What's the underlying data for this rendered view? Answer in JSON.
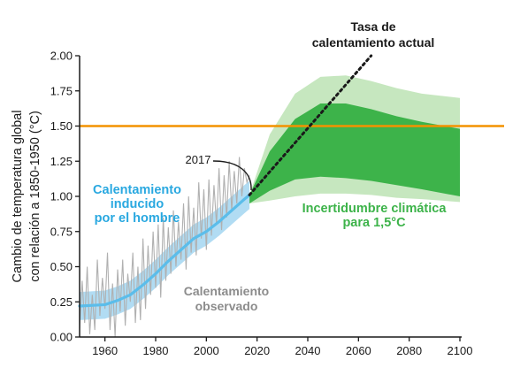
{
  "chart_data": {
    "type": "line",
    "title": "",
    "ylabel_line1": "Cambio de temperatura global",
    "ylabel_line2": "con relación a 1850-1950 (°C)",
    "xlabel": "",
    "xlim": [
      1950,
      2100
    ],
    "ylim": [
      0,
      2
    ],
    "x_ticks": [
      "1960",
      "1980",
      "2000",
      "2020",
      "2040",
      "2060",
      "2080",
      "2100"
    ],
    "y_ticks": [
      "0.00",
      "0.25",
      "0.50",
      "0.75",
      "1.00",
      "1.25",
      "1.50",
      "1.75",
      "2.00"
    ],
    "grid": false,
    "reference_line": {
      "value": 1.5,
      "color": "#f39200"
    },
    "annotations": {
      "rate_line1": "Tasa de",
      "rate_line2": "calentamiento actual",
      "year_2017": "2017",
      "human_line1": "Calentamiento",
      "human_line2": "inducido",
      "human_line3": "por el hombre",
      "observed_line1": "Calentamiento",
      "observed_line2": "observado",
      "uncert_line1": "Incertidumbre climática",
      "uncert_line2": "para 1,5°C"
    },
    "colors": {
      "human": "#5bbdea",
      "human_band": "#a8d8f2",
      "observed": "#b0b0b0",
      "inner_band": "#3db34a",
      "outer_band": "#c6e7bf",
      "rate_line": "#1a1a1a",
      "axis": "#1a1a1a"
    },
    "series": [
      {
        "name": "Calentamiento inducido por el hombre",
        "x": [
          1950,
          1960,
          1965,
          1970,
          1975,
          1980,
          1985,
          1990,
          1995,
          2000,
          2005,
          2010,
          2015,
          2017
        ],
        "y": [
          0.22,
          0.23,
          0.26,
          0.3,
          0.37,
          0.45,
          0.54,
          0.62,
          0.7,
          0.75,
          0.82,
          0.9,
          0.98,
          1.01
        ],
        "band_width": 0.1
      },
      {
        "name": "Calentamiento observado",
        "x": [
          1950,
          1951,
          1952,
          1953,
          1954,
          1955,
          1956,
          1957,
          1958,
          1959,
          1960,
          1961,
          1962,
          1963,
          1964,
          1965,
          1966,
          1967,
          1968,
          1969,
          1970,
          1971,
          1972,
          1973,
          1974,
          1975,
          1976,
          1977,
          1978,
          1979,
          1980,
          1981,
          1982,
          1983,
          1984,
          1985,
          1986,
          1987,
          1988,
          1989,
          1990,
          1991,
          1992,
          1993,
          1994,
          1995,
          1996,
          1997,
          1998,
          1999,
          2000,
          2001,
          2002,
          2003,
          2004,
          2005,
          2006,
          2007,
          2008,
          2009,
          2010,
          2011,
          2012,
          2013,
          2014,
          2015,
          2016,
          2017
        ],
        "y": [
          0.06,
          0.4,
          0.1,
          0.5,
          0.02,
          0.3,
          0.05,
          0.55,
          0.15,
          0.42,
          0.2,
          0.6,
          0.05,
          0.38,
          0.0,
          0.48,
          0.18,
          0.55,
          0.08,
          0.45,
          0.25,
          0.6,
          0.1,
          0.5,
          0.12,
          0.7,
          0.2,
          0.65,
          0.3,
          0.75,
          0.35,
          0.8,
          0.28,
          0.85,
          0.4,
          0.78,
          0.45,
          0.9,
          0.5,
          0.82,
          0.55,
          0.95,
          0.48,
          1.0,
          0.6,
          0.92,
          0.58,
          1.1,
          0.7,
          1.05,
          0.62,
          1.12,
          0.72,
          1.08,
          0.8,
          1.2,
          0.76,
          1.15,
          0.85,
          1.25,
          0.9,
          1.18,
          0.95,
          1.28,
          1.0,
          1.2,
          1.1,
          1.15
        ]
      },
      {
        "name": "Tasa de calentamiento actual",
        "x": [
          2017,
          2065
        ],
        "y": [
          1.01,
          2.0
        ]
      },
      {
        "name": "Incertidumbre climática para 1,5°C (interior)",
        "x": [
          2017,
          2025,
          2035,
          2045,
          2055,
          2065,
          2075,
          2085,
          2100
        ],
        "upper": [
          1.01,
          1.32,
          1.55,
          1.66,
          1.66,
          1.62,
          1.57,
          1.53,
          1.48
        ],
        "lower": [
          0.95,
          1.04,
          1.12,
          1.14,
          1.13,
          1.11,
          1.08,
          1.05,
          1.0
        ]
      },
      {
        "name": "Incertidumbre climática para 1,5°C (exterior)",
        "x": [
          2017,
          2025,
          2035,
          2045,
          2055,
          2065,
          2075,
          2085,
          2100
        ],
        "upper": [
          1.01,
          1.44,
          1.73,
          1.85,
          1.86,
          1.82,
          1.77,
          1.73,
          1.7
        ],
        "lower": [
          0.95,
          0.97,
          1.0,
          1.02,
          1.02,
          1.01,
          0.99,
          0.98,
          0.96
        ]
      }
    ]
  }
}
